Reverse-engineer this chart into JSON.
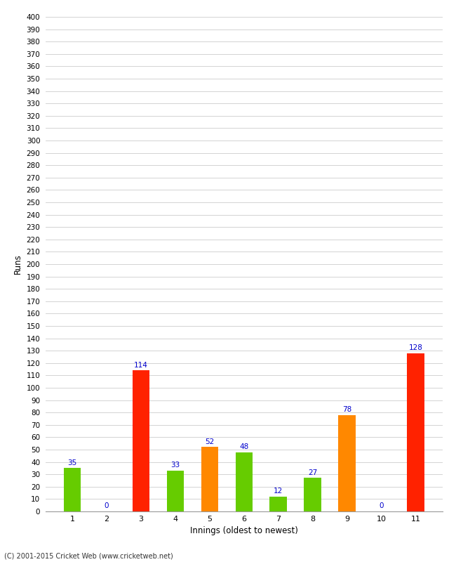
{
  "xlabel": "Innings (oldest to newest)",
  "ylabel": "Runs",
  "categories": [
    "1",
    "2",
    "3",
    "4",
    "5",
    "6",
    "7",
    "8",
    "9",
    "10",
    "11"
  ],
  "values": [
    35,
    0,
    114,
    33,
    52,
    48,
    12,
    27,
    78,
    0,
    128
  ],
  "bar_colors": [
    "#66cc00",
    "#66cc00",
    "#ff2200",
    "#66cc00",
    "#ff8800",
    "#66cc00",
    "#66cc00",
    "#66cc00",
    "#ff8800",
    "#66cc00",
    "#ff2200"
  ],
  "value_label_color": "#0000cc",
  "ylim": [
    0,
    400
  ],
  "ytick_step": 10,
  "background_color": "#ffffff",
  "grid_color": "#cccccc",
  "footer_text": "(C) 2001-2015 Cricket Web (www.cricketweb.net)"
}
